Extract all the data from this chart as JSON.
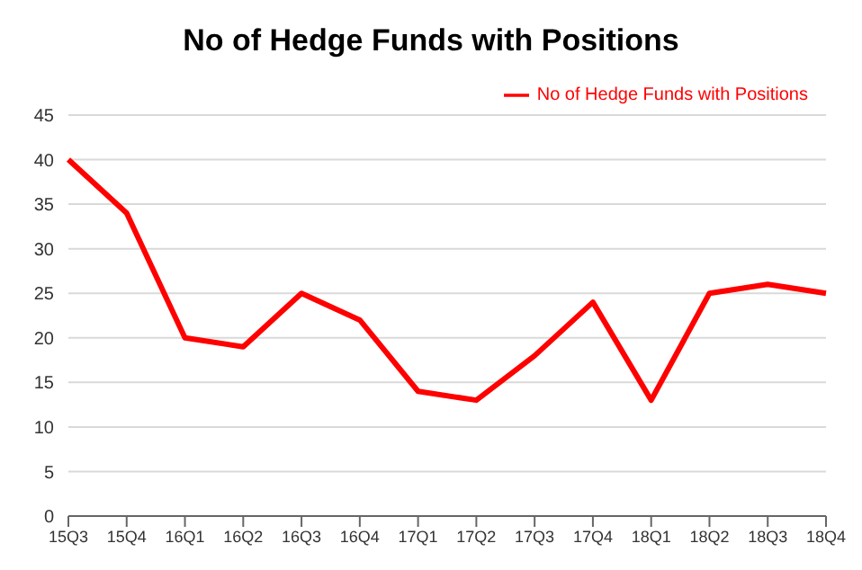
{
  "chart_data": {
    "type": "line",
    "title": "No of Hedge Funds with Positions",
    "categories": [
      "15Q3",
      "15Q4",
      "16Q1",
      "16Q2",
      "16Q3",
      "16Q4",
      "17Q1",
      "17Q2",
      "17Q3",
      "17Q4",
      "18Q1",
      "18Q2",
      "18Q3",
      "18Q4"
    ],
    "series": [
      {
        "name": "No of Hedge Funds with Positions",
        "color": "#ff0000",
        "values": [
          40,
          34,
          20,
          19,
          25,
          22,
          14,
          13,
          18,
          24,
          13,
          25,
          26,
          25
        ]
      }
    ],
    "ylim": [
      0,
      45
    ],
    "yticks": [
      0,
      5,
      10,
      15,
      20,
      25,
      30,
      35,
      40,
      45
    ],
    "grid": "y",
    "legend": "top right",
    "marker": "none",
    "line_style": "solid"
  }
}
